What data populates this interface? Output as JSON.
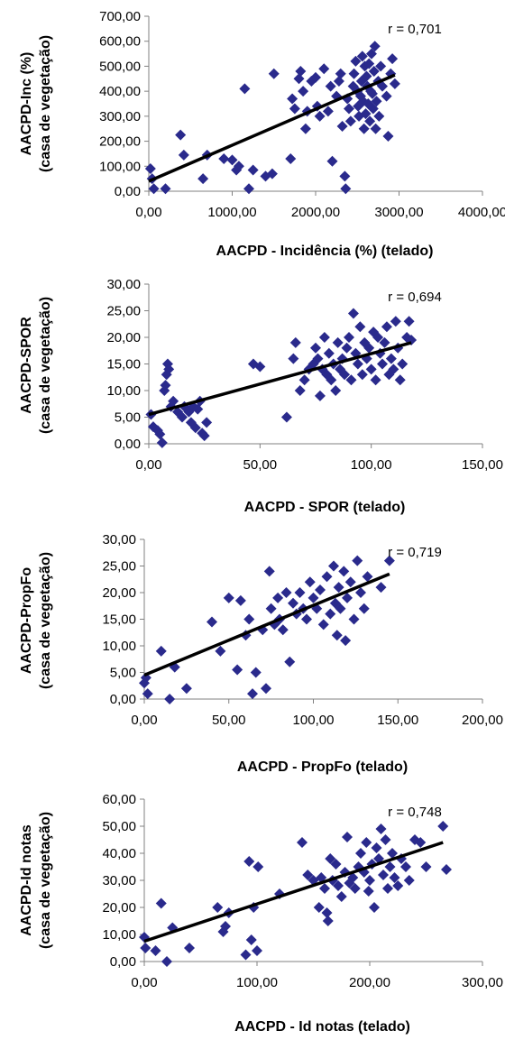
{
  "colors": {
    "marker": "#2a2a8c",
    "trend": "#000000",
    "axis": "#808080"
  },
  "chart_data": [
    {
      "type": "scatter",
      "xlabel": "AACPD - Incidência (%) (telado)",
      "ylabel": [
        "AACPD-Inc (%)",
        "(casa de vegetação)"
      ],
      "annotation": "r = 0,701",
      "xlim": [
        0,
        4000
      ],
      "ylim": [
        0,
        700
      ],
      "xticks": [
        "0,00",
        "1000,00",
        "2000,00",
        "3000,00",
        "4000,00"
      ],
      "yticks": [
        "0,00",
        "100,00",
        "200,00",
        "300,00",
        "400,00",
        "500,00",
        "600,00",
        "700,00"
      ],
      "trend": [
        [
          0,
          40
        ],
        [
          2950,
          465
        ]
      ],
      "points": [
        [
          20,
          90
        ],
        [
          40,
          50
        ],
        [
          60,
          10
        ],
        [
          200,
          10
        ],
        [
          380,
          225
        ],
        [
          420,
          145
        ],
        [
          650,
          50
        ],
        [
          700,
          145
        ],
        [
          900,
          130
        ],
        [
          1000,
          125
        ],
        [
          1050,
          85
        ],
        [
          1080,
          100
        ],
        [
          1150,
          410
        ],
        [
          1200,
          10
        ],
        [
          1250,
          85
        ],
        [
          1400,
          60
        ],
        [
          1480,
          70
        ],
        [
          1500,
          470
        ],
        [
          1700,
          130
        ],
        [
          1720,
          370
        ],
        [
          1750,
          330
        ],
        [
          1800,
          450
        ],
        [
          1820,
          480
        ],
        [
          1850,
          400
        ],
        [
          1880,
          250
        ],
        [
          1900,
          320
        ],
        [
          1950,
          440
        ],
        [
          2000,
          455
        ],
        [
          2020,
          340
        ],
        [
          2050,
          300
        ],
        [
          2100,
          490
        ],
        [
          2150,
          320
        ],
        [
          2180,
          420
        ],
        [
          2200,
          120
        ],
        [
          2250,
          380
        ],
        [
          2280,
          440
        ],
        [
          2300,
          470
        ],
        [
          2320,
          260
        ],
        [
          2350,
          60
        ],
        [
          2360,
          10
        ],
        [
          2380,
          370
        ],
        [
          2400,
          330
        ],
        [
          2420,
          280
        ],
        [
          2450,
          420
        ],
        [
          2460,
          470
        ],
        [
          2480,
          520
        ],
        [
          2500,
          400
        ],
        [
          2510,
          340
        ],
        [
          2520,
          300
        ],
        [
          2540,
          380
        ],
        [
          2550,
          440
        ],
        [
          2560,
          540
        ],
        [
          2570,
          360
        ],
        [
          2580,
          250
        ],
        [
          2590,
          500
        ],
        [
          2600,
          310
        ],
        [
          2610,
          460
        ],
        [
          2620,
          420
        ],
        [
          2630,
          350
        ],
        [
          2640,
          510
        ],
        [
          2650,
          280
        ],
        [
          2660,
          400
        ],
        [
          2670,
          550
        ],
        [
          2680,
          390
        ],
        [
          2690,
          330
        ],
        [
          2700,
          480
        ],
        [
          2710,
          580
        ],
        [
          2720,
          250
        ],
        [
          2730,
          360
        ],
        [
          2750,
          440
        ],
        [
          2760,
          300
        ],
        [
          2780,
          500
        ],
        [
          2800,
          420
        ],
        [
          2850,
          380
        ],
        [
          2870,
          220
        ],
        [
          2900,
          470
        ],
        [
          2920,
          530
        ],
        [
          2950,
          430
        ]
      ]
    },
    {
      "type": "scatter",
      "xlabel": "AACPD - SPOR (telado)",
      "ylabel": [
        "AACPD-SPOR",
        "(casa de vegetação)"
      ],
      "annotation": "r = 0,694",
      "xlim": [
        0,
        150
      ],
      "ylim": [
        0,
        30
      ],
      "xticks": [
        "0,00",
        "50,00",
        "100,00",
        "150,00"
      ],
      "yticks": [
        "0,00",
        "5,00",
        "10,00",
        "15,00",
        "20,00",
        "25,00",
        "30,00"
      ],
      "trend": [
        [
          0,
          5.5
        ],
        [
          118,
          19
        ]
      ],
      "points": [
        [
          1,
          5.5
        ],
        [
          2,
          3.2
        ],
        [
          4,
          2.5
        ],
        [
          5,
          1.8
        ],
        [
          6,
          0.2
        ],
        [
          7,
          10
        ],
        [
          7.5,
          11
        ],
        [
          8,
          13
        ],
        [
          8.5,
          15
        ],
        [
          9,
          14
        ],
        [
          10,
          7
        ],
        [
          11,
          8
        ],
        [
          13,
          6
        ],
        [
          15,
          5
        ],
        [
          16,
          7
        ],
        [
          18,
          6
        ],
        [
          19,
          4
        ],
        [
          20,
          7
        ],
        [
          21,
          3
        ],
        [
          22,
          6.5
        ],
        [
          23,
          8
        ],
        [
          24,
          2
        ],
        [
          25,
          1.5
        ],
        [
          26,
          4
        ],
        [
          47,
          15
        ],
        [
          50,
          14.5
        ],
        [
          62,
          5
        ],
        [
          65,
          16
        ],
        [
          66,
          19
        ],
        [
          68,
          10
        ],
        [
          70,
          12
        ],
        [
          72,
          14
        ],
        [
          74,
          15
        ],
        [
          75,
          18
        ],
        [
          76,
          16
        ],
        [
          77,
          9
        ],
        [
          78,
          14
        ],
        [
          79,
          20
        ],
        [
          80,
          13
        ],
        [
          81,
          17
        ],
        [
          82,
          12
        ],
        [
          83,
          15
        ],
        [
          84,
          10
        ],
        [
          85,
          19
        ],
        [
          86,
          14
        ],
        [
          87,
          16
        ],
        [
          88,
          13
        ],
        [
          89,
          18
        ],
        [
          90,
          20
        ],
        [
          91,
          12
        ],
        [
          92,
          24.5
        ],
        [
          93,
          17
        ],
        [
          94,
          15
        ],
        [
          95,
          22
        ],
        [
          96,
          13
        ],
        [
          97,
          19
        ],
        [
          98,
          16
        ],
        [
          99,
          18
        ],
        [
          100,
          14
        ],
        [
          101,
          21
        ],
        [
          102,
          12
        ],
        [
          103,
          20
        ],
        [
          104,
          17
        ],
        [
          105,
          15
        ],
        [
          106,
          19
        ],
        [
          107,
          22
        ],
        [
          108,
          13
        ],
        [
          109,
          16
        ],
        [
          110,
          14
        ],
        [
          111,
          23
        ],
        [
          112,
          18
        ],
        [
          113,
          12
        ],
        [
          114,
          15
        ],
        [
          116,
          20
        ],
        [
          117,
          23
        ],
        [
          118,
          19.5
        ]
      ]
    },
    {
      "type": "scatter",
      "xlabel": "AACPD - PropFo (telado)",
      "ylabel": [
        "AACPD-PropFo",
        "(casa de vegetação)"
      ],
      "annotation": "r = 0,719",
      "xlim": [
        0,
        200
      ],
      "ylim": [
        0,
        30
      ],
      "xticks": [
        "0,00",
        "50,00",
        "100,00",
        "150,00",
        "200,00"
      ],
      "yticks": [
        "0,00",
        "5,00",
        "10,00",
        "15,00",
        "20,00",
        "25,00",
        "30,00"
      ],
      "trend": [
        [
          0,
          4.5
        ],
        [
          145,
          23.5
        ]
      ],
      "points": [
        [
          0,
          3
        ],
        [
          1,
          4
        ],
        [
          2,
          1
        ],
        [
          10,
          9
        ],
        [
          15,
          0
        ],
        [
          18,
          6
        ],
        [
          25,
          2
        ],
        [
          40,
          14.5
        ],
        [
          45,
          9
        ],
        [
          50,
          19
        ],
        [
          55,
          5.5
        ],
        [
          57,
          18.5
        ],
        [
          60,
          12
        ],
        [
          62,
          15
        ],
        [
          64,
          1
        ],
        [
          66,
          5
        ],
        [
          70,
          13
        ],
        [
          72,
          2
        ],
        [
          74,
          24
        ],
        [
          75,
          17
        ],
        [
          77,
          14
        ],
        [
          79,
          19
        ],
        [
          80,
          15
        ],
        [
          82,
          13
        ],
        [
          84,
          20
        ],
        [
          86,
          7
        ],
        [
          88,
          18
        ],
        [
          90,
          16
        ],
        [
          92,
          20
        ],
        [
          94,
          17
        ],
        [
          96,
          15
        ],
        [
          98,
          22
        ],
        [
          100,
          19
        ],
        [
          102,
          17
        ],
        [
          104,
          20.5
        ],
        [
          106,
          14
        ],
        [
          108,
          23
        ],
        [
          110,
          16
        ],
        [
          112,
          25
        ],
        [
          113,
          18
        ],
        [
          114,
          12
        ],
        [
          115,
          21
        ],
        [
          116,
          17
        ],
        [
          118,
          24
        ],
        [
          119,
          11
        ],
        [
          120,
          19
        ],
        [
          122,
          22
        ],
        [
          124,
          15
        ],
        [
          126,
          26
        ],
        [
          128,
          20
        ],
        [
          130,
          17
        ],
        [
          132,
          23
        ],
        [
          140,
          21
        ],
        [
          145,
          26
        ]
      ]
    },
    {
      "type": "scatter",
      "xlabel": "AACPD - Id notas  (telado)",
      "ylabel": [
        "AACPD-Id notas",
        "(casa de vegetação)"
      ],
      "annotation": "r = 0,748",
      "xlim": [
        0,
        300
      ],
      "ylim": [
        0,
        60
      ],
      "xticks": [
        "0,00",
        "100,00",
        "200,00",
        "300,00"
      ],
      "yticks": [
        "0,00",
        "10,00",
        "20,00",
        "30,00",
        "40,00",
        "50,00",
        "60,00"
      ],
      "trend": [
        [
          0,
          7.5
        ],
        [
          265,
          44
        ]
      ],
      "points": [
        [
          0,
          9
        ],
        [
          1,
          5
        ],
        [
          10,
          4
        ],
        [
          15,
          21.5
        ],
        [
          20,
          0
        ],
        [
          25,
          12.5
        ],
        [
          40,
          5
        ],
        [
          65,
          20
        ],
        [
          70,
          11
        ],
        [
          72,
          13
        ],
        [
          75,
          18
        ],
        [
          90,
          2.5
        ],
        [
          93,
          37
        ],
        [
          95,
          8
        ],
        [
          97,
          20
        ],
        [
          100,
          4
        ],
        [
          101,
          35
        ],
        [
          120,
          25
        ],
        [
          140,
          44
        ],
        [
          145,
          32
        ],
        [
          150,
          30
        ],
        [
          155,
          20
        ],
        [
          157,
          31
        ],
        [
          160,
          27
        ],
        [
          162,
          18
        ],
        [
          163,
          15
        ],
        [
          165,
          38
        ],
        [
          167,
          30
        ],
        [
          170,
          36
        ],
        [
          172,
          28
        ],
        [
          175,
          24
        ],
        [
          178,
          33
        ],
        [
          180,
          46
        ],
        [
          182,
          29
        ],
        [
          185,
          31
        ],
        [
          187,
          27
        ],
        [
          190,
          35
        ],
        [
          192,
          40
        ],
        [
          195,
          33
        ],
        [
          197,
          44
        ],
        [
          199,
          26
        ],
        [
          200,
          30
        ],
        [
          202,
          36
        ],
        [
          204,
          20
        ],
        [
          206,
          42
        ],
        [
          208,
          38
        ],
        [
          210,
          49
        ],
        [
          212,
          32
        ],
        [
          214,
          45
        ],
        [
          216,
          27
        ],
        [
          218,
          35
        ],
        [
          220,
          40
        ],
        [
          222,
          31
        ],
        [
          225,
          28
        ],
        [
          228,
          38
        ],
        [
          232,
          35
        ],
        [
          235,
          30
        ],
        [
          240,
          45
        ],
        [
          245,
          44
        ],
        [
          250,
          35
        ],
        [
          265,
          50
        ],
        [
          268,
          34
        ]
      ]
    }
  ]
}
